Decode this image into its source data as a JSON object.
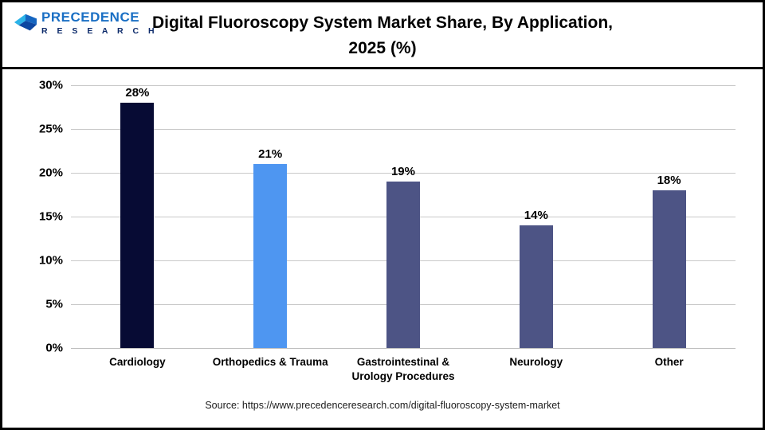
{
  "header": {
    "logo": {
      "line1": "PRECEDENCE",
      "line2": "R E S E A R C H"
    },
    "title_line1": "Digital Fluoroscopy System Market Share, By Application,",
    "title_line2": "2025 (%)"
  },
  "chart_data": {
    "type": "bar",
    "title": "Digital Fluoroscopy System Market Share, By Application, 2025 (%)",
    "categories": [
      "Cardiology",
      "Orthopedics & Trauma",
      "Gastrointestinal & Urology Procedures",
      "Neurology",
      "Other"
    ],
    "values": [
      28,
      21,
      19,
      14,
      18
    ],
    "value_labels": [
      "28%",
      "21%",
      "19%",
      "14%",
      "18%"
    ],
    "bar_colors": [
      "#070b34",
      "#4e96f1",
      "#4d5485",
      "#4d5485",
      "#4d5485"
    ],
    "xlabel": "",
    "ylabel": "",
    "ylim": [
      0,
      30
    ],
    "yticks": [
      0,
      5,
      10,
      15,
      20,
      25,
      30
    ],
    "ytick_labels": [
      "0%",
      "5%",
      "10%",
      "15%",
      "20%",
      "25%",
      "30%"
    ],
    "grid": true,
    "legend": "none"
  },
  "footer": {
    "source": "Source: https://www.precedenceresearch.com/digital-fluoroscopy-system-market"
  },
  "colors": {
    "accent_navy": "#070b34",
    "accent_blue": "#4e96f1",
    "accent_slate": "#4d5485",
    "logo_blue": "#1a6fc4",
    "logo_navy": "#0d2b6b"
  }
}
